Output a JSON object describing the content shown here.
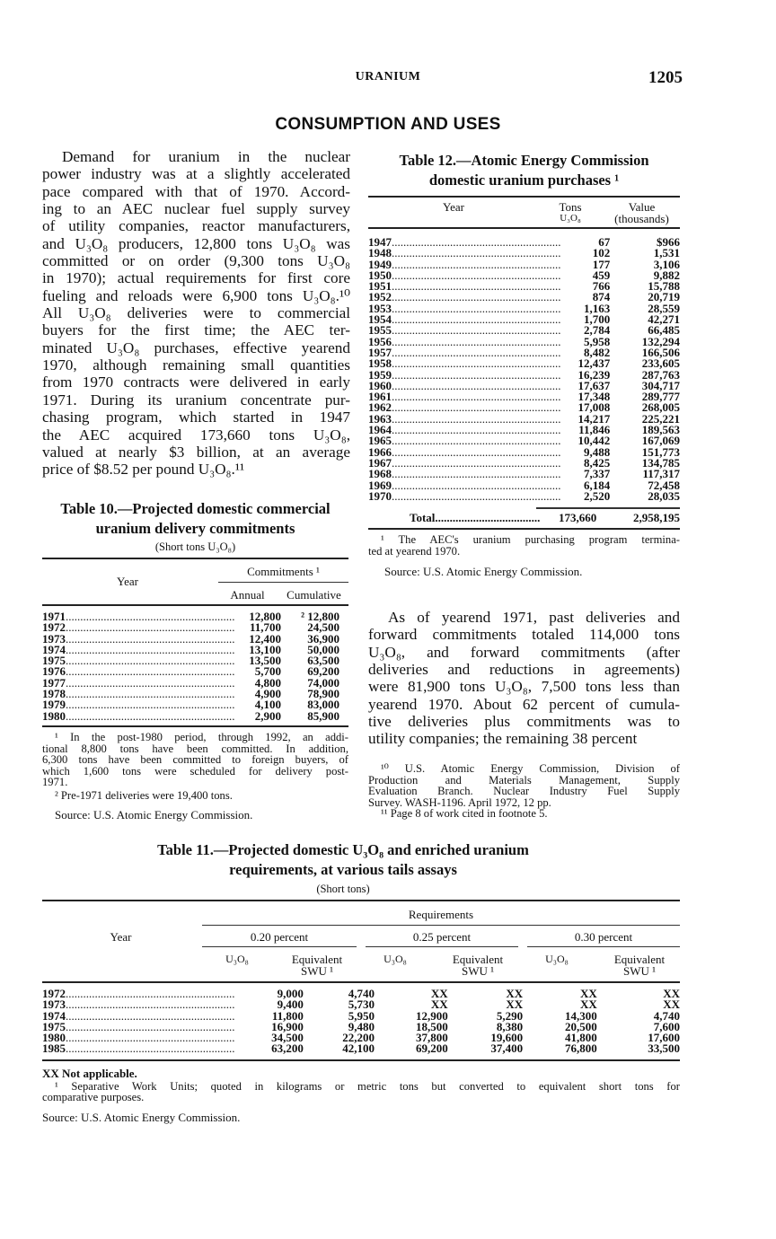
{
  "header": {
    "running_title": "URANIUM",
    "page_number": "1205"
  },
  "section_title": "CONSUMPTION AND USES",
  "left_text": [
    "Demand for uranium in the nuclear",
    "power industry was at a slightly accelerated",
    "pace compared with that of 1970. Accord-",
    "ing to an AEC nuclear fuel supply survey",
    "of utility companies, reactor manufacturers,",
    "and U₃O₈ producers, 12,800 tons U₃O₈ was",
    "committed or on order (9,300 tons U₃O₈",
    "in 1970); actual requirements for first core",
    "fueling and reloads were 6,900 tons U₃O₈.¹⁰",
    "All U₃O₈ deliveries were to commercial",
    "buyers for the first time; the AEC ter-",
    "minated U₃O₈ purchases, effective yearend",
    "1970, although remaining small quantities",
    "from 1970 contracts were delivered in early",
    "1971. During its uranium concentrate pur-",
    "chasing program, which started in 1947",
    "the AEC acquired 173,660 tons U₃O₈,",
    "valued at nearly $3 billion, at an average",
    "price of $8.52 per pound U₃O₈.¹¹"
  ],
  "right_text": [
    "As of yearend 1971, past deliveries and",
    "forward commitments totaled 114,000 tons",
    "U₃O₈, and forward commitments (after",
    "deliveries and reductions in agreements)",
    "were 81,900 tons U₃O₈, 7,500 tons less than",
    "yearend 1970. About 62 percent of cumula-",
    "tive deliveries plus commitments was to",
    "utility companies; the remaining 38 percent"
  ],
  "page_footnotes": [
    "¹⁰ U.S. Atomic Energy Commission, Division of",
    "Production and Materials Management, Supply",
    "Evaluation Branch. Nuclear Industry Fuel Supply",
    "Survey. WASH-1196. April 1972, 12 pp.",
    "¹¹ Page 8 of work cited in footnote 5."
  ],
  "table12": {
    "title_line1": "Table 12.—Atomic Energy Commission",
    "title_line2": "domestic uranium purchases ¹",
    "col_year": "Year",
    "col_tons_1": "Tons",
    "col_tons_2": "U₃O₈",
    "col_value_1": "Value",
    "col_value_2": "(thousands)",
    "rows": [
      [
        "1947",
        "67",
        "$966"
      ],
      [
        "1948",
        "102",
        "1,531"
      ],
      [
        "1949",
        "177",
        "3,106"
      ],
      [
        "1950",
        "459",
        "9,882"
      ],
      [
        "1951",
        "766",
        "15,788"
      ],
      [
        "1952",
        "874",
        "20,719"
      ],
      [
        "1953",
        "1,163",
        "28,559"
      ],
      [
        "1954",
        "1,700",
        "42,271"
      ],
      [
        "1955",
        "2,784",
        "66,485"
      ],
      [
        "1956",
        "5,958",
        "132,294"
      ],
      [
        "1957",
        "8,482",
        "166,506"
      ],
      [
        "1958",
        "12,437",
        "233,605"
      ],
      [
        "1959",
        "16,239",
        "287,763"
      ],
      [
        "1960",
        "17,637",
        "304,717"
      ],
      [
        "1961",
        "17,348",
        "289,777"
      ],
      [
        "1962",
        "17,008",
        "268,005"
      ],
      [
        "1963",
        "14,217",
        "225,221"
      ],
      [
        "1964",
        "11,846",
        "189,563"
      ],
      [
        "1965",
        "10,442",
        "167,069"
      ],
      [
        "1966",
        "9,488",
        "151,773"
      ],
      [
        "1967",
        "8,425",
        "134,785"
      ],
      [
        "1968",
        "7,337",
        "117,317"
      ],
      [
        "1969",
        "6,184",
        "72,458"
      ],
      [
        "1970",
        "2,520",
        "28,035"
      ]
    ],
    "total": [
      "Total",
      "173,660",
      "2,958,195"
    ],
    "footnote": [
      "¹ The AEC's uranium purchasing program termina-",
      "ted at yearend 1970."
    ],
    "source": "Source:   U.S. Atomic Energy Commission."
  },
  "table10": {
    "title_line1": "Table 10.—Projected domestic commercial",
    "title_line2": "uranium delivery commitments",
    "subtitle": "(Short tons U₃O₈)",
    "col_year": "Year",
    "col_group": "Commitments ¹",
    "col_annual": "Annual",
    "col_cumulative": "Cumulative",
    "rows": [
      [
        "1971",
        "12,800",
        "² 12,800"
      ],
      [
        "1972",
        "11,700",
        "24,500"
      ],
      [
        "1973",
        "12,400",
        "36,900"
      ],
      [
        "1974",
        "13,100",
        "50,000"
      ],
      [
        "1975",
        "13,500",
        "63,500"
      ],
      [
        "1976",
        "5,700",
        "69,200"
      ],
      [
        "1977",
        "4,800",
        "74,000"
      ],
      [
        "1978",
        "4,900",
        "78,900"
      ],
      [
        "1979",
        "4,100",
        "83,000"
      ],
      [
        "1980",
        "2,900",
        "85,900"
      ]
    ],
    "footnote1": [
      "¹ In the post-1980 period, through 1992, an addi-",
      "tional 8,800 tons have been committed. In addition,",
      "6,300 tons have been committed to foreign buyers, of",
      "which 1,600 tons were scheduled for delivery post-",
      "1971."
    ],
    "footnote2": "² Pre-1971 deliveries were 19,400 tons.",
    "source": "Source:   U.S. Atomic Energy Commission."
  },
  "table11": {
    "title_line1": "Table 11.—Projected domestic U₃O₈ and enriched uranium",
    "title_line2": "requirements, at various tails assays",
    "subtitle": "(Short tons)",
    "col_year": "Year",
    "col_group": "Requirements",
    "assays": [
      "0.20 percent",
      "0.25 percent",
      "0.30 percent"
    ],
    "sub_u3o8": "U₃O₈",
    "sub_swu_1": "Equivalent",
    "sub_swu_2": "SWU ¹",
    "rows": [
      [
        "1972",
        "9,000",
        "4,740",
        "XX",
        "XX",
        "XX",
        "XX"
      ],
      [
        "1973",
        "9,400",
        "5,730",
        "XX",
        "XX",
        "XX",
        "XX"
      ],
      [
        "1974",
        "11,800",
        "5,950",
        "12,900",
        "5,290",
        "14,300",
        "4,740"
      ],
      [
        "1975",
        "16,900",
        "9,480",
        "18,500",
        "8,380",
        "20,500",
        "7,600"
      ],
      [
        "1980",
        "34,500",
        "22,200",
        "37,800",
        "19,600",
        "41,800",
        "17,600"
      ],
      [
        "1985",
        "63,200",
        "42,100",
        "69,200",
        "37,400",
        "76,800",
        "33,500"
      ]
    ],
    "note_xx": "XX Not applicable.",
    "footnote": [
      "¹ Separative Work Units; quoted in kilograms or metric tons but converted to equivalent short tons for",
      "comparative purposes."
    ],
    "source": "Source: U.S. Atomic Energy Commission."
  }
}
